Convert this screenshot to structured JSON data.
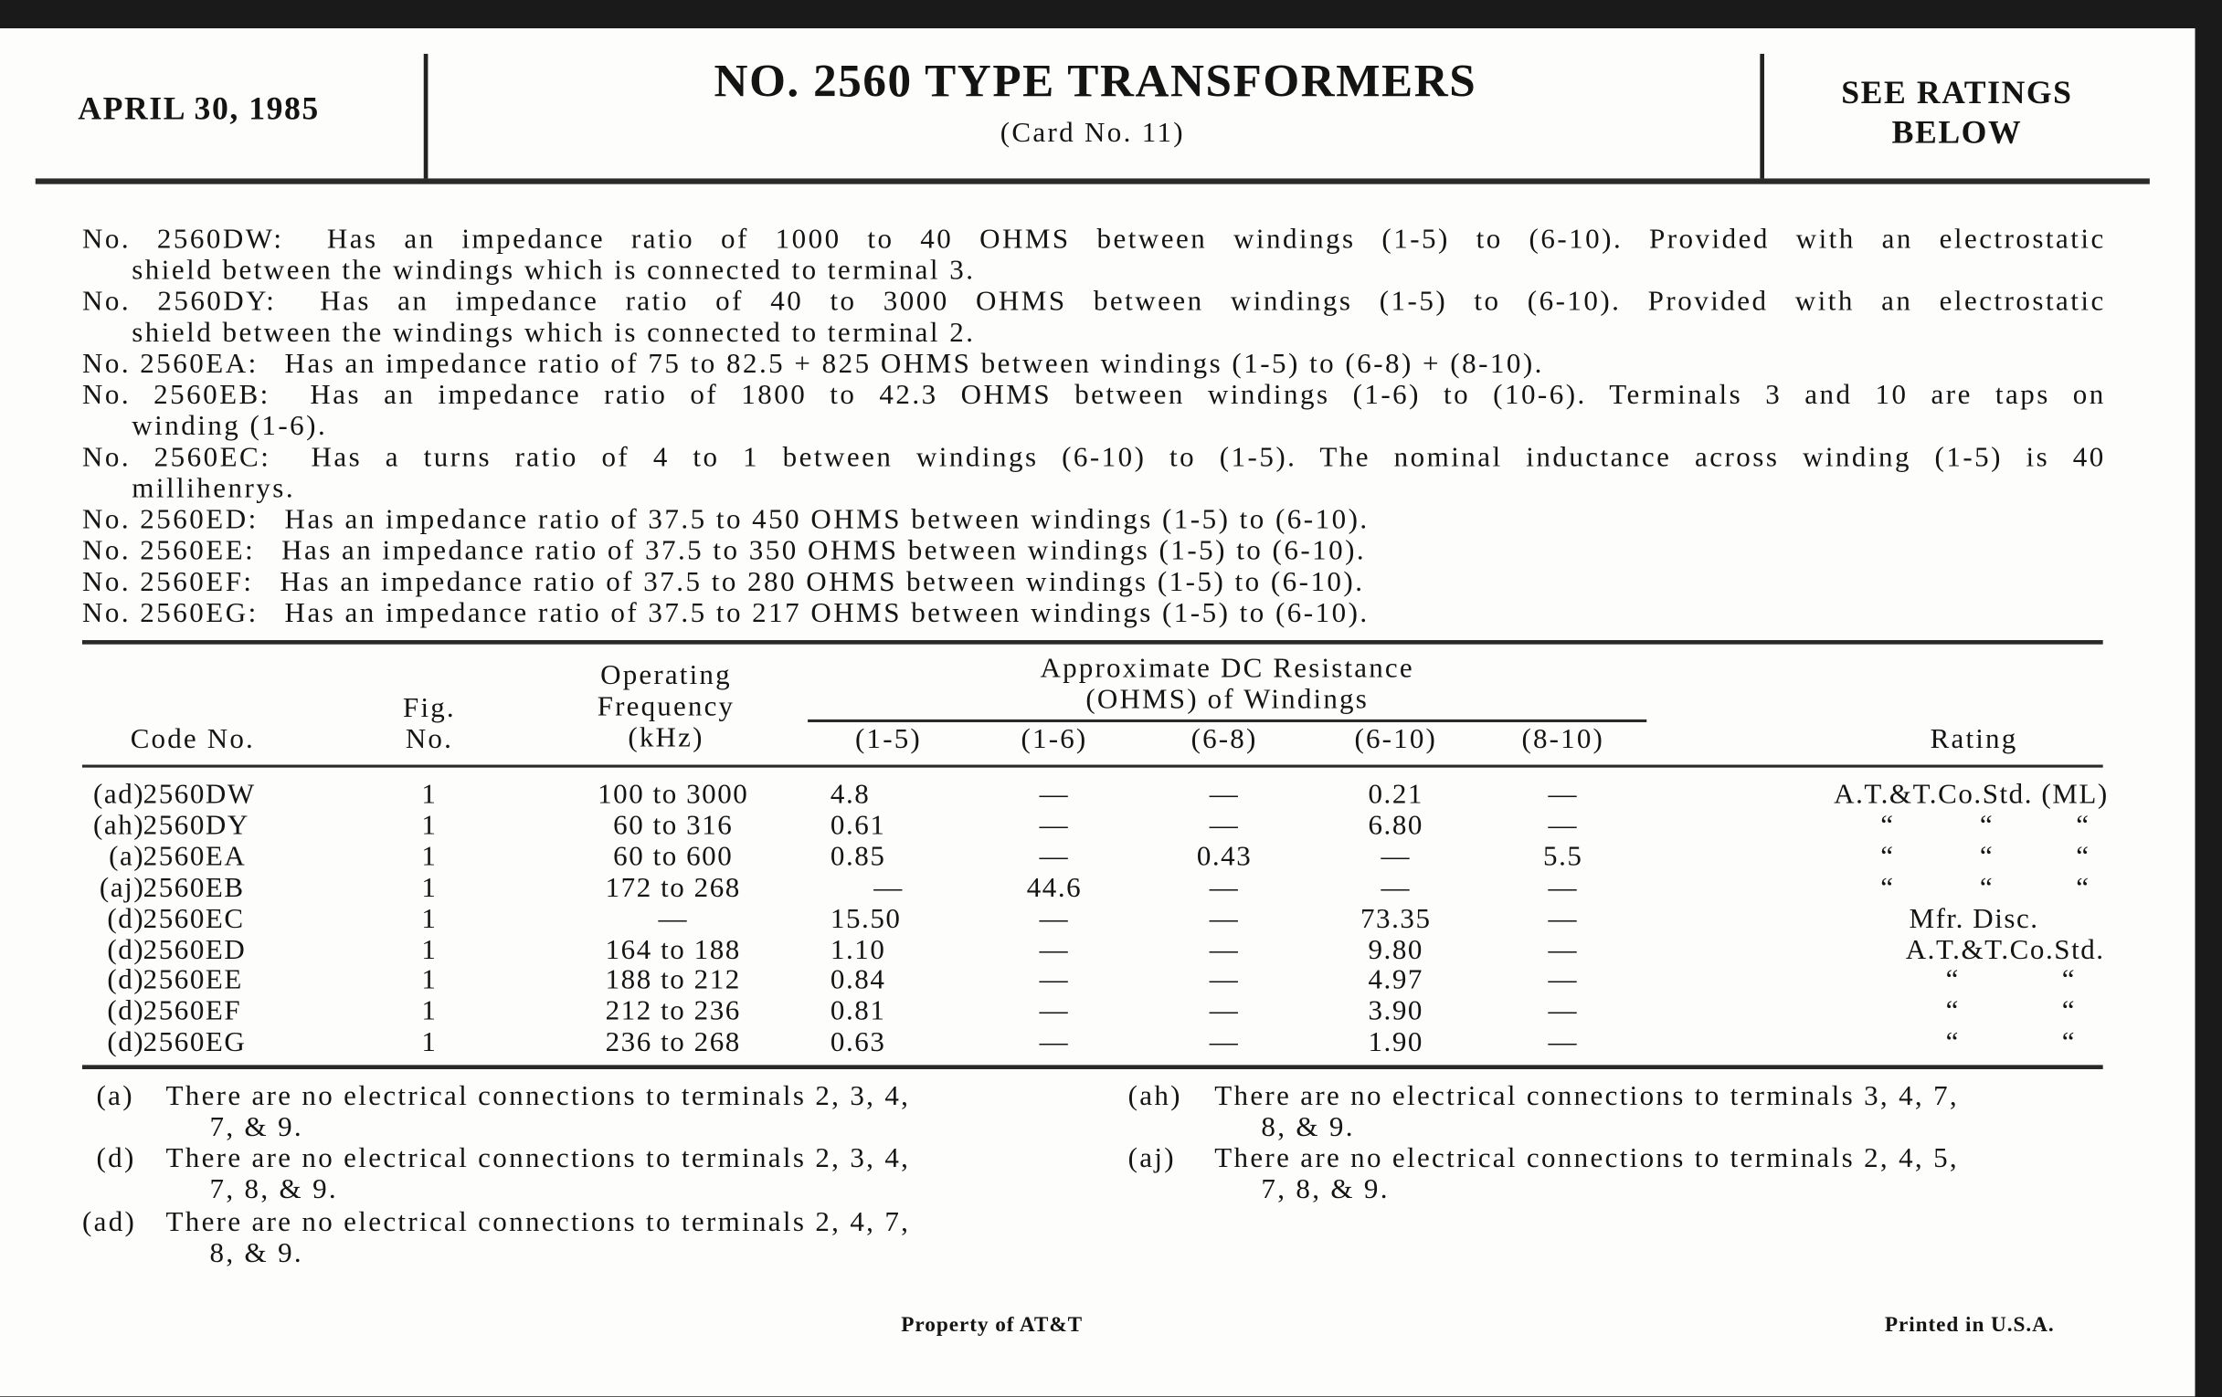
{
  "header": {
    "date": "APRIL 30, 1985",
    "title": "NO. 2560 TYPE TRANSFORMERS",
    "subtitle": "(Card No. 11)",
    "ratings_line1": "SEE RATINGS",
    "ratings_line2": "BELOW"
  },
  "descriptions": [
    {
      "code": "No. 2560DW:",
      "line1": "Has an impedance ratio of 1000 to 40 OHMS between windings (1-5) to (6-10). Provided with an electrostatic",
      "line2": "shield between the windings which is connected to terminal 3."
    },
    {
      "code": "No. 2560DY:",
      "line1": "Has an impedance ratio of 40 to 3000 OHMS between windings (1-5) to (6-10). Provided with an electrostatic",
      "line2": "shield between the windings which is connected to terminal 2."
    },
    {
      "code": "No. 2560EA:",
      "line1": "Has an impedance ratio of 75 to 82.5 + 825 OHMS between windings (1-5) to (6-8) + (8-10).",
      "line2": ""
    },
    {
      "code": "No. 2560EB:",
      "line1": "Has an impedance ratio of 1800 to 42.3 OHMS between windings (1-6) to (10-6). Terminals 3 and 10 are taps on",
      "line2": "winding (1-6)."
    },
    {
      "code": "No. 2560EC:",
      "line1": "Has a turns ratio of 4 to 1 between windings (6-10) to (1-5). The nominal inductance across winding (1-5) is 40",
      "line2": "millihenrys."
    },
    {
      "code": "No. 2560ED:",
      "line1": "Has an impedance ratio of 37.5 to 450 OHMS between windings (1-5) to (6-10).",
      "line2": ""
    },
    {
      "code": "No. 2560EE:",
      "line1": "Has an impedance ratio of 37.5 to 350 OHMS between windings (1-5) to (6-10).",
      "line2": ""
    },
    {
      "code": "No. 2560EF:",
      "line1": "Has an impedance ratio of 37.5 to 280 OHMS between windings (1-5) to (6-10).",
      "line2": ""
    },
    {
      "code": "No. 2560EG:",
      "line1": "Has an impedance ratio of 37.5 to 217 OHMS between windings (1-5) to (6-10).",
      "line2": ""
    }
  ],
  "table": {
    "headers": {
      "code": "Code No.",
      "fig_1": "Fig.",
      "fig_2": "No.",
      "freq_1": "Operating",
      "freq_2": "Frequency",
      "freq_3": "(kHz)",
      "res_1": "Approximate DC Resistance",
      "res_2": "(OHMS) of Windings",
      "w15": "(1-5)",
      "w16": "(1-6)",
      "w68": "(6-8)",
      "w610": "(6-10)",
      "w810": "(8-10)",
      "rating": "Rating"
    },
    "rows": [
      {
        "prefix": "(ad)",
        "code": "2560DW",
        "fig": "1",
        "freq": "100 to 3000",
        "w15": "4.8",
        "w16": "—",
        "w68": "—",
        "w610": "0.21",
        "w810": "—",
        "rating": [
          "A.T.&T.Co.Std.  (ML)"
        ]
      },
      {
        "prefix": "(ah)",
        "code": "2560DY",
        "fig": "1",
        "freq": "60 to 316",
        "w15": "0.61",
        "w16": "—",
        "w68": "—",
        "w610": "6.80",
        "w810": "—",
        "rating": [
          "“",
          "“",
          "“"
        ]
      },
      {
        "prefix": "(a)",
        "code": "2560EA",
        "fig": "1",
        "freq": "60 to 600",
        "w15": "0.85",
        "w16": "—",
        "w68": "0.43",
        "w610": "—",
        "w810": "5.5",
        "rating": [
          "“",
          "“",
          "“"
        ]
      },
      {
        "prefix": "(aj)",
        "code": "2560EB",
        "fig": "1",
        "freq": "172 to 268",
        "w15": "—",
        "w16": "44.6",
        "w68": "—",
        "w610": "—",
        "w810": "—",
        "rating": [
          "“",
          "“",
          "“"
        ]
      },
      {
        "prefix": "(d)",
        "code": "2560EC",
        "fig": "1",
        "freq": "—",
        "w15": "15.50",
        "w16": "—",
        "w68": "—",
        "w610": "73.35",
        "w810": "—",
        "rating": [
          "Mfr. Disc."
        ]
      },
      {
        "prefix": "(d)",
        "code": "2560ED",
        "fig": "1",
        "freq": "164 to 188",
        "w15": "1.10",
        "w16": "—",
        "w68": "—",
        "w610": "9.80",
        "w810": "—",
        "rating": [
          "A.T.&T.Co.Std."
        ]
      },
      {
        "prefix": "(d)",
        "code": "2560EE",
        "fig": "1",
        "freq": "188 to 212",
        "w15": "0.84",
        "w16": "—",
        "w68": "—",
        "w610": "4.97",
        "w810": "—",
        "rating": [
          "“",
          "“"
        ]
      },
      {
        "prefix": "(d)",
        "code": "2560EF",
        "fig": "1",
        "freq": "212 to 236",
        "w15": "0.81",
        "w16": "—",
        "w68": "—",
        "w610": "3.90",
        "w810": "—",
        "rating": [
          "“",
          "“"
        ]
      },
      {
        "prefix": "(d)",
        "code": "2560EG",
        "fig": "1",
        "freq": "236 to 268",
        "w15": "0.63",
        "w16": "—",
        "w68": "—",
        "w610": "1.90",
        "w810": "—",
        "rating": [
          "“",
          "“"
        ]
      }
    ]
  },
  "footnotes": [
    {
      "tag": "(a)",
      "line1": "There are no electrical connections to terminals 2, 3, 4,",
      "line2": "7, & 9."
    },
    {
      "tag": "(d)",
      "line1": "There are no electrical connections to terminals 2, 3, 4,",
      "line2": "7, 8, & 9."
    },
    {
      "tag": "(ad)",
      "line1": "There are no electrical connections to terminals 2, 4, 7,",
      "line2": "8, & 9."
    },
    {
      "tag": "(ah)",
      "line1": "There are no electrical connections to terminals 3, 4, 7,",
      "line2": "8, & 9."
    },
    {
      "tag": "(aj)",
      "line1": "There are no electrical connections to terminals 2, 4, 5,",
      "line2": "7, 8, & 9."
    }
  ],
  "footer": {
    "property": "Property of AT&T",
    "printed": "Printed in U.S.A."
  }
}
